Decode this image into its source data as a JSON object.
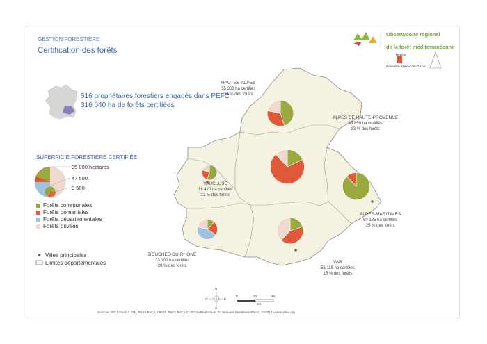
{
  "header": {
    "section": "GESTION FORESTIÈRE",
    "title": "Certification des forêts"
  },
  "stats": {
    "line1": "516 propriétaires forestiers engagés dans PEFC",
    "line2": "316 040 ha de forêts certifiées"
  },
  "legend": {
    "title": "SUPERFICIE FORESTIÈRE CERTIFIÉE",
    "scale": [
      "95 000 hectares",
      "47 500",
      "9 500"
    ],
    "categories": [
      {
        "label": "Forêts communales",
        "color": "#9aa93f"
      },
      {
        "label": "Forêts domaniales",
        "color": "#e05a3a"
      },
      {
        "label": "Forêts départementales",
        "color": "#9ec2e2"
      },
      {
        "label": "Forêts privées",
        "color": "#efd8cd"
      }
    ],
    "symbols": [
      "Villes principales",
      "Limites départementales"
    ]
  },
  "departments": [
    {
      "name": "HAUTES-ALPES",
      "ha": "55 368 ha certifiés",
      "pct": "24 % des forêts"
    },
    {
      "name": "ALPES DE HAUTE-PROVENCE",
      "ha": "93 850 ha certifiés",
      "pct": "23 % des forêts"
    },
    {
      "name": "VAUCLUSE",
      "ha": "18 420 ha certifiés",
      "pct": "12 % des forêts"
    },
    {
      "name": "ALPES-MARITIMES",
      "ha": "60 185 ha certifiés",
      "pct": "25 % des forêts"
    },
    {
      "name": "BOUCHES-DU-RHÔNE",
      "ha": "33 100 ha certifiés",
      "pct": "28 % des forêts"
    },
    {
      "name": "VAR",
      "ha": "55 115 ha certifiés",
      "pct": "15 % des forêts"
    }
  ],
  "pies": [
    {
      "dept": "HAUTES-ALPES",
      "total": 55368,
      "shares": [
        0.45,
        0.33,
        0.0,
        0.22
      ]
    },
    {
      "dept": "ALPES DE HAUTE-PROVENCE",
      "total": 93850,
      "shares": [
        0.18,
        0.7,
        0.0,
        0.12
      ]
    },
    {
      "dept": "VAUCLUSE",
      "total": 18420,
      "shares": [
        0.55,
        0.25,
        0.0,
        0.2
      ]
    },
    {
      "dept": "ALPES-MARITIMES",
      "total": 60185,
      "shares": [
        0.88,
        0.12,
        0.0,
        0.0
      ]
    },
    {
      "dept": "BOUCHES-DU-RHÔNE",
      "total": 33100,
      "shares": [
        0.12,
        0.22,
        0.45,
        0.21
      ]
    },
    {
      "dept": "VAR",
      "total": 55115,
      "shares": [
        0.2,
        0.42,
        0.0,
        0.38
      ]
    }
  ],
  "logo": {
    "line1": "Observatoire régional",
    "line2": "de la forêt méditerranéenne",
    "region_line1": "Région",
    "region_line2": "Provence-Alpes-Côte d'Azur"
  },
  "compass": {
    "n": "N",
    "s": "S",
    "e": "E",
    "o": "O"
  },
  "scalebar": {
    "labels": [
      "0",
      "20",
      "40"
    ],
    "unit": "km"
  },
  "source": "Sources : BD Carto® © IGN, PEAS PACA n°8419, PEFC PACA 31/2013 • Réalisation : Communes forestières PACA, 10/2013 • www.ofme.org"
}
